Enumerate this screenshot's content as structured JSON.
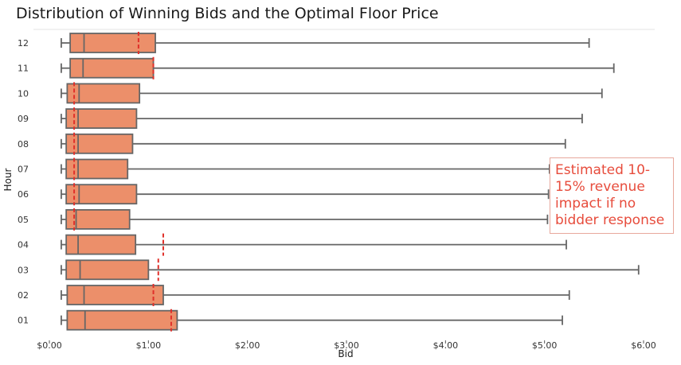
{
  "chart_data": {
    "type": "boxplot",
    "orientation": "horizontal",
    "title": "Distribution of Winning Bids and the Optimal Floor Price",
    "xlabel": "Bid",
    "ylabel": "Hour",
    "xlim": [
      -0.1,
      6.2
    ],
    "xticks": [
      0,
      1,
      2,
      3,
      4,
      5,
      6
    ],
    "xtick_labels": [
      "$0.00",
      "$1.00",
      "$2.00",
      "$3.00",
      "$4.00",
      "$5.00",
      "$6.00"
    ],
    "categories": [
      "12",
      "11",
      "10",
      "09",
      "08",
      "07",
      "06",
      "05",
      "04",
      "03",
      "02",
      "01"
    ],
    "boxes": [
      {
        "hour": "12",
        "whisker_low": 0.12,
        "q1": 0.21,
        "median": 0.35,
        "q3": 1.07,
        "whisker_high": 5.45
      },
      {
        "hour": "11",
        "whisker_low": 0.12,
        "q1": 0.21,
        "median": 0.34,
        "q3": 1.05,
        "whisker_high": 5.7
      },
      {
        "hour": "10",
        "whisker_low": 0.12,
        "q1": 0.18,
        "median": 0.3,
        "q3": 0.91,
        "whisker_high": 5.58
      },
      {
        "hour": "09",
        "whisker_low": 0.12,
        "q1": 0.17,
        "median": 0.29,
        "q3": 0.88,
        "whisker_high": 5.38
      },
      {
        "hour": "08",
        "whisker_low": 0.12,
        "q1": 0.17,
        "median": 0.29,
        "q3": 0.84,
        "whisker_high": 5.21
      },
      {
        "hour": "07",
        "whisker_low": 0.12,
        "q1": 0.17,
        "median": 0.29,
        "q3": 0.79,
        "whisker_high": 5.05
      },
      {
        "hour": "06",
        "whisker_low": 0.12,
        "q1": 0.17,
        "median": 0.3,
        "q3": 0.88,
        "whisker_high": 5.04
      },
      {
        "hour": "05",
        "whisker_low": 0.12,
        "q1": 0.17,
        "median": 0.27,
        "q3": 0.81,
        "whisker_high": 5.03
      },
      {
        "hour": "04",
        "whisker_low": 0.12,
        "q1": 0.17,
        "median": 0.29,
        "q3": 0.87,
        "whisker_high": 5.22
      },
      {
        "hour": "03",
        "whisker_low": 0.12,
        "q1": 0.17,
        "median": 0.31,
        "q3": 1.0,
        "whisker_high": 5.95
      },
      {
        "hour": "02",
        "whisker_low": 0.12,
        "q1": 0.18,
        "median": 0.35,
        "q3": 1.15,
        "whisker_high": 5.25
      },
      {
        "hour": "01",
        "whisker_low": 0.12,
        "q1": 0.18,
        "median": 0.36,
        "q3": 1.29,
        "whisker_high": 5.18
      }
    ],
    "floor_prices": [
      {
        "hour": "12",
        "value": 0.9
      },
      {
        "hour": "11",
        "value": 1.05
      },
      {
        "hour": "10",
        "value": 0.25
      },
      {
        "hour": "09",
        "value": 0.25
      },
      {
        "hour": "08",
        "value": 0.25
      },
      {
        "hour": "07",
        "value": 0.25
      },
      {
        "hour": "06",
        "value": 0.25
      },
      {
        "hour": "05",
        "value": 0.25
      },
      {
        "hour": "04",
        "value": 1.15
      },
      {
        "hour": "03",
        "value": 1.1
      },
      {
        "hour": "02",
        "value": 1.05
      },
      {
        "hour": "01",
        "value": 1.23
      }
    ],
    "annotation": "Estimated 10-15% revenue impact if no bidder response",
    "colors": {
      "box_fill": "#ec8f6a",
      "box_edge": "#666666",
      "floor_line": "#e0302a",
      "annotation_text": "#e74c3c",
      "annotation_border": "#e8a89c"
    },
    "grid": false,
    "legend": "none"
  }
}
